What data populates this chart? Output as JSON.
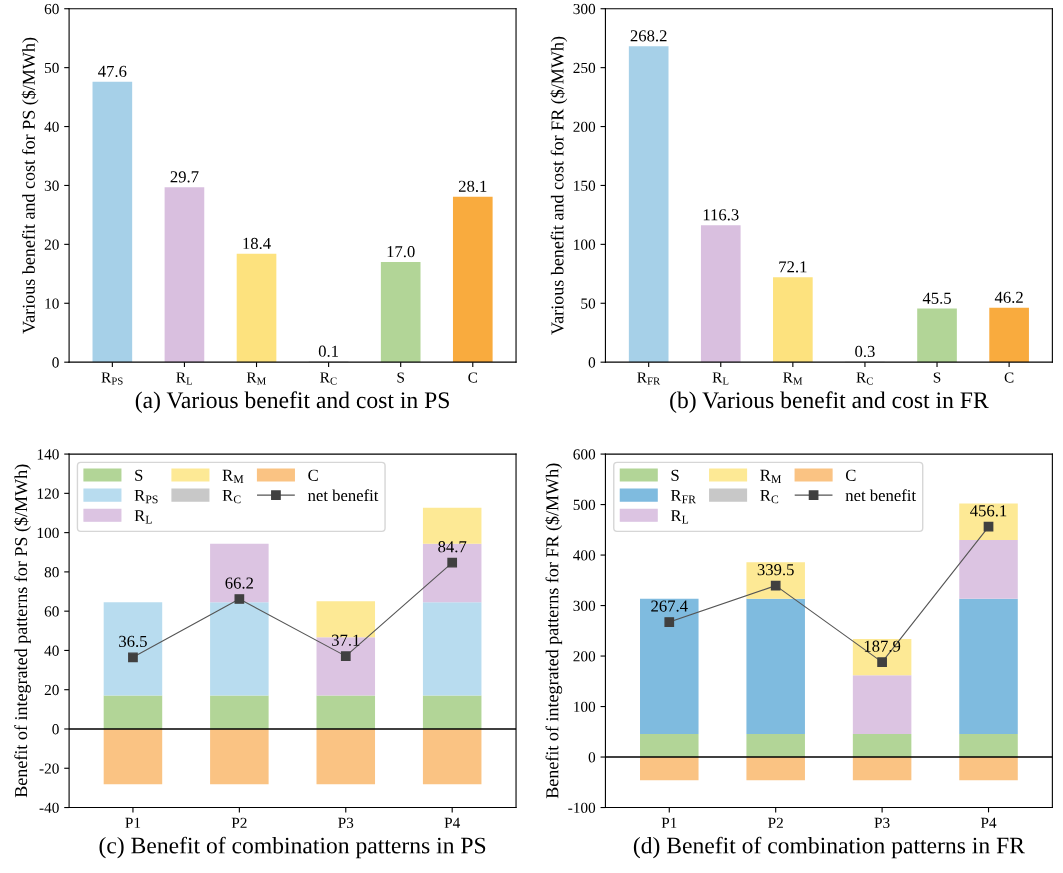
{
  "chart_data": [
    {
      "type": "bar",
      "xlabel": "(a) Various benefit and cost in PS",
      "ylabel": "Various benefit and cost for PS ($/MWh)",
      "categories": [
        "R$_{PS}$",
        "R$_{L}$",
        "R$_{M}$",
        "R$_{C}$",
        "S",
        "C"
      ],
      "values": [
        47.6,
        29.7,
        18.4,
        0.1,
        17.0,
        28.1
      ],
      "colors": [
        "#a6d0e8",
        "#d9bfdf",
        "#fde27e",
        "#c8c8c8",
        "#b2d597",
        "#f9ab3e"
      ],
      "value_labels": [
        "47.6",
        "29.7",
        "18.4",
        "0.1",
        "17.0",
        "28.1"
      ],
      "ylim": [
        0,
        60
      ],
      "yticks": [
        0,
        10,
        20,
        30,
        40,
        50,
        60
      ],
      "grid": false,
      "legend": false
    },
    {
      "type": "bar",
      "xlabel": "(b) Various benefit and cost in FR",
      "ylabel": "Various benefit and cost for FR ($/MWh)",
      "categories": [
        "R$_{FR}$",
        "R$_{L}$",
        "R$_{M}$",
        "R$_{C}$",
        "S",
        "C"
      ],
      "values": [
        268.2,
        116.3,
        72.1,
        0.3,
        45.5,
        46.2
      ],
      "colors": [
        "#a6d0e8",
        "#d9bfdf",
        "#fde27e",
        "#c8c8c8",
        "#b2d597",
        "#f9ab3e"
      ],
      "value_labels": [
        "268.2",
        "116.3",
        "72.1",
        "0.3",
        "45.5",
        "46.2"
      ],
      "ylim": [
        0,
        300
      ],
      "yticks": [
        0,
        50,
        100,
        150,
        200,
        250,
        300
      ],
      "grid": false,
      "legend": false
    },
    {
      "type": "bar",
      "stacked": true,
      "xlabel": "(c) Benefit of combination patterns in PS",
      "ylabel": "Benefit of integrated patterns for PS ($/MWh)",
      "categories": [
        "P1",
        "P2",
        "P3",
        "P4"
      ],
      "series": [
        {
          "name": "S",
          "color": "#b2d597",
          "values": [
            17.0,
            17.0,
            17.0,
            17.0
          ]
        },
        {
          "name": "R$_{PS}$",
          "color": "#b8dcef",
          "values": [
            47.6,
            47.6,
            null,
            47.6
          ]
        },
        {
          "name": "R$_{L}$",
          "color": "#dcc4e2",
          "values": [
            null,
            29.7,
            29.7,
            29.7
          ]
        },
        {
          "name": "R$_{M}$",
          "color": "#fde995",
          "values": [
            null,
            null,
            18.4,
            18.4
          ]
        },
        {
          "name": "R$_{C}$",
          "color": "#c8c8c8",
          "values": [
            null,
            null,
            null,
            null
          ]
        },
        {
          "name": "C",
          "color": "#fac383",
          "values": [
            -28.1,
            -28.1,
            -28.1,
            -28.1
          ]
        },
        {
          "name": "net benefit",
          "type": "line",
          "color": "#555555",
          "marker": "square",
          "line_style": "solid",
          "values": [
            36.5,
            66.2,
            37.1,
            84.7
          ],
          "value_labels": [
            "36.5",
            "66.2",
            "37.1",
            "84.7"
          ]
        }
      ],
      "ylim": [
        -40,
        140
      ],
      "yticks": [
        -40,
        -20,
        0,
        20,
        40,
        60,
        80,
        100,
        120,
        140
      ],
      "ref_lines": [
        {
          "axis": "y",
          "value": 0,
          "color": "#000000",
          "line_style": "solid"
        }
      ],
      "grid": false,
      "legend": "top left"
    },
    {
      "type": "bar",
      "stacked": true,
      "xlabel": "(d) Benefit of combination patterns in FR",
      "ylabel": "Benefit of integrated patterns for FR ($/MWh)",
      "categories": [
        "P1",
        "P2",
        "P3",
        "P4"
      ],
      "series": [
        {
          "name": "S",
          "color": "#b2d597",
          "values": [
            45.5,
            45.5,
            45.5,
            45.5
          ]
        },
        {
          "name": "R$_{FR}$",
          "color": "#7fbbdf",
          "values": [
            268.2,
            268.2,
            null,
            268.2
          ]
        },
        {
          "name": "R$_{L}$",
          "color": "#dcc4e2",
          "values": [
            null,
            null,
            116.3,
            116.3
          ]
        },
        {
          "name": "R$_{M}$",
          "color": "#fde995",
          "values": [
            null,
            72.1,
            72.1,
            72.1
          ]
        },
        {
          "name": "R$_{C}$",
          "color": "#c8c8c8",
          "values": [
            null,
            null,
            null,
            null
          ]
        },
        {
          "name": "C",
          "color": "#fac383",
          "values": [
            -46.2,
            -46.2,
            -46.2,
            -46.2
          ]
        },
        {
          "name": "net benefit",
          "type": "line",
          "color": "#555555",
          "marker": "square",
          "line_style": "solid",
          "values": [
            267.4,
            339.5,
            187.9,
            456.1
          ],
          "value_labels": [
            "267.4",
            "339.5",
            "187.9",
            "456.1"
          ]
        }
      ],
      "ylim": [
        -100,
        600
      ],
      "yticks": [
        -100,
        0,
        100,
        200,
        300,
        400,
        500,
        600
      ],
      "ref_lines": [
        {
          "axis": "y",
          "value": 0,
          "color": "#000000",
          "line_style": "solid"
        }
      ],
      "grid": false,
      "legend": "top left"
    }
  ]
}
